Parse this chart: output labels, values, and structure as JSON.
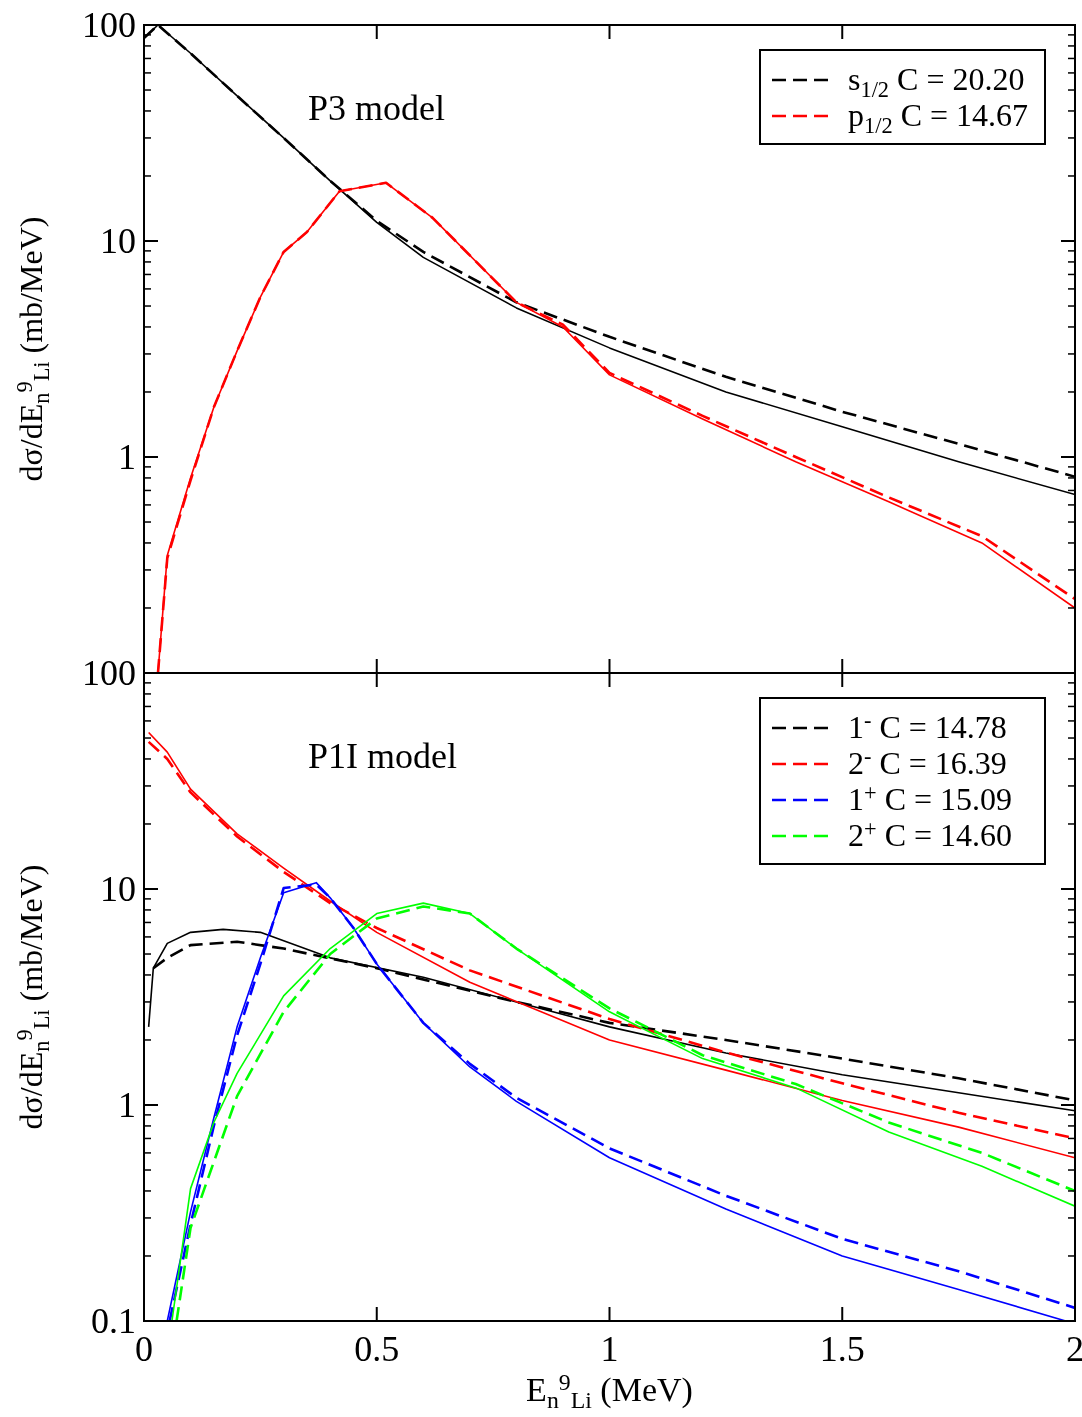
{
  "chart_data": [
    {
      "type": "line",
      "ylabel": "dσ/dE$_{n}$$^{9}$$_{Li}$ (mb/MeV)",
      "annotations": [
        "P3 model"
      ],
      "xlim": [
        0,
        2
      ],
      "xticks": [
        {
          "value": 0,
          "label": null
        },
        {
          "value": 0.5,
          "label": null
        },
        {
          "value": 1,
          "label": null
        },
        {
          "value": 1.5,
          "label": null
        },
        {
          "value": 2,
          "label": null
        }
      ],
      "ylim": [
        0.1,
        100
      ],
      "yticks": [
        {
          "value": 0.1,
          "label": null
        },
        1,
        10,
        100
      ],
      "log": "y",
      "grid": false,
      "legend": "top right",
      "tick_labels": "y",
      "series": [
        {
          "color": "#000000",
          "line_style": "solid",
          "x": [
            0,
            0.03,
            0.1,
            0.2,
            0.3,
            0.4,
            0.5,
            0.6,
            0.8,
            1,
            1.25,
            1.5,
            1.75,
            2
          ],
          "values": [
            87,
            100,
            74,
            47,
            30,
            19,
            12.2,
            8.4,
            4.9,
            3.2,
            2,
            1.38,
            0.95,
            0.67
          ]
        },
        {
          "name": "s$_{1/2}$  C = 20.20",
          "color": "#000000",
          "line_style": "dashed",
          "x": [
            0,
            0.03,
            0.1,
            0.2,
            0.3,
            0.4,
            0.5,
            0.6,
            0.8,
            1,
            1.25,
            1.5,
            1.75,
            2
          ],
          "values": [
            87,
            100,
            74,
            47,
            30,
            19,
            12.4,
            8.9,
            5.2,
            3.6,
            2.35,
            1.62,
            1.15,
            0.81
          ]
        },
        {
          "color": "#ff0000",
          "line_style": "solid",
          "x": [
            0.03,
            0.05,
            0.1,
            0.15,
            0.2,
            0.25,
            0.3,
            0.35,
            0.42,
            0.52,
            0.62,
            0.8,
            0.9,
            1,
            1.2,
            1.4,
            1.6,
            1.8,
            2
          ],
          "values": [
            0.1,
            0.35,
            0.8,
            1.7,
            3.1,
            5.5,
            8.9,
            11,
            17,
            18.6,
            12.8,
            5.2,
            4,
            2.4,
            1.5,
            0.95,
            0.62,
            0.4,
            0.2
          ]
        },
        {
          "name": "p$_{1/2}$  C = 14.67",
          "color": "#ff0000",
          "line_style": "dashed",
          "x": [
            0.03,
            0.05,
            0.1,
            0.15,
            0.2,
            0.25,
            0.3,
            0.35,
            0.42,
            0.52,
            0.62,
            0.8,
            0.9,
            1,
            1.2,
            1.4,
            1.6,
            1.8,
            2
          ],
          "values": [
            0.1,
            0.34,
            0.78,
            1.7,
            3.1,
            5.5,
            8.9,
            11,
            17,
            18.6,
            12.8,
            5.2,
            4.1,
            2.45,
            1.55,
            1,
            0.65,
            0.43,
            0.22
          ]
        }
      ]
    },
    {
      "type": "line",
      "xlabel": "E$_{n}$$^{9}$$_{Li}$ (MeV)",
      "ylabel": "dσ/dE$_{n}$$^{9}$$_{Li}$ (mb/MeV)",
      "annotations": [
        "P1I model"
      ],
      "xlim": [
        0,
        2
      ],
      "xticks": [
        0,
        0.5,
        1,
        1.5,
        2
      ],
      "ylim": [
        0.1,
        100
      ],
      "yticks": [
        0.1,
        1,
        10,
        100
      ],
      "log": "y",
      "grid": false,
      "legend": "top right",
      "series": [
        {
          "color": "#000000",
          "line_style": "solid",
          "x": [
            0.01,
            0.02,
            0.05,
            0.1,
            0.17,
            0.25,
            0.4,
            0.6,
            0.8,
            1,
            1.25,
            1.5,
            1.75,
            2
          ],
          "values": [
            2.3,
            4.3,
            5.6,
            6.3,
            6.5,
            6.3,
            4.8,
            3.9,
            3,
            2.3,
            1.74,
            1.38,
            1.14,
            0.94
          ]
        },
        {
          "name": "1$^{-}$  C = 14.78",
          "color": "#000000",
          "line_style": "dashed",
          "x": [
            0.02,
            0.05,
            0.1,
            0.2,
            0.3,
            0.5,
            0.8,
            1,
            1.25,
            1.5,
            1.75,
            2
          ],
          "values": [
            4.3,
            4.8,
            5.5,
            5.7,
            5.3,
            4.3,
            3,
            2.4,
            2,
            1.64,
            1.33,
            1.05
          ]
        },
        {
          "color": "#ff0000",
          "line_style": "solid",
          "x": [
            0.01,
            0.05,
            0.1,
            0.2,
            0.3,
            0.4,
            0.5,
            0.7,
            1,
            1.25,
            1.5,
            1.75,
            2
          ],
          "values": [
            53,
            43,
            29,
            18,
            12.5,
            8.8,
            6.3,
            3.7,
            2,
            1.45,
            1.05,
            0.79,
            0.57
          ]
        },
        {
          "name": "2$^{-}$  C = 16.39",
          "color": "#ff0000",
          "line_style": "dashed",
          "x": [
            0.01,
            0.05,
            0.1,
            0.2,
            0.3,
            0.4,
            0.5,
            0.7,
            1,
            1.25,
            1.5,
            1.75,
            2
          ],
          "values": [
            48,
            40,
            28,
            17.5,
            12,
            8.6,
            6.6,
            4.2,
            2.5,
            1.75,
            1.26,
            0.92,
            0.7
          ]
        },
        {
          "color": "#0000ff",
          "line_style": "solid",
          "x": [
            0.05,
            0.1,
            0.15,
            0.2,
            0.25,
            0.3,
            0.37,
            0.4,
            0.45,
            0.5,
            0.6,
            0.7,
            0.8,
            1,
            1.25,
            1.5,
            1.75,
            1.98
          ],
          "values": [
            0.1,
            0.32,
            0.87,
            2.3,
            4.8,
            9.6,
            10.7,
            9.1,
            6.6,
            4.5,
            2.4,
            1.5,
            1.04,
            0.57,
            0.33,
            0.2,
            0.14,
            0.1
          ]
        },
        {
          "name": "1$^{+}$  C = 15.09",
          "color": "#0000ff",
          "line_style": "dashed",
          "x": [
            0.055,
            0.1,
            0.15,
            0.2,
            0.25,
            0.3,
            0.37,
            0.4,
            0.45,
            0.5,
            0.6,
            0.7,
            0.8,
            1,
            1.25,
            1.5,
            1.75,
            2
          ],
          "values": [
            0.1,
            0.28,
            0.8,
            2.1,
            4.5,
            10.1,
            10.5,
            9.1,
            6.6,
            4.5,
            2.4,
            1.55,
            1.08,
            0.63,
            0.38,
            0.24,
            0.17,
            0.115
          ]
        },
        {
          "color": "#00ff00",
          "line_style": "solid",
          "x": [
            0.06,
            0.1,
            0.15,
            0.2,
            0.3,
            0.4,
            0.5,
            0.6,
            0.7,
            0.8,
            1,
            1.2,
            1.4,
            1.6,
            1.8,
            2
          ],
          "values": [
            0.1,
            0.41,
            0.83,
            1.4,
            3.2,
            5.3,
            7.7,
            8.6,
            7.7,
            5.3,
            2.7,
            1.64,
            1.2,
            0.75,
            0.52,
            0.34
          ]
        },
        {
          "name": "2$^{+}$  C = 14.60",
          "color": "#00ff00",
          "line_style": "dashed",
          "x": [
            0.07,
            0.1,
            0.2,
            0.3,
            0.4,
            0.5,
            0.6,
            0.7,
            0.8,
            1,
            1.2,
            1.4,
            1.6,
            1.8,
            2
          ],
          "values": [
            0.1,
            0.27,
            1.1,
            2.7,
            5,
            7.3,
            8.3,
            7.7,
            5.3,
            2.8,
            1.7,
            1.25,
            0.83,
            0.6,
            0.4
          ]
        }
      ]
    }
  ]
}
